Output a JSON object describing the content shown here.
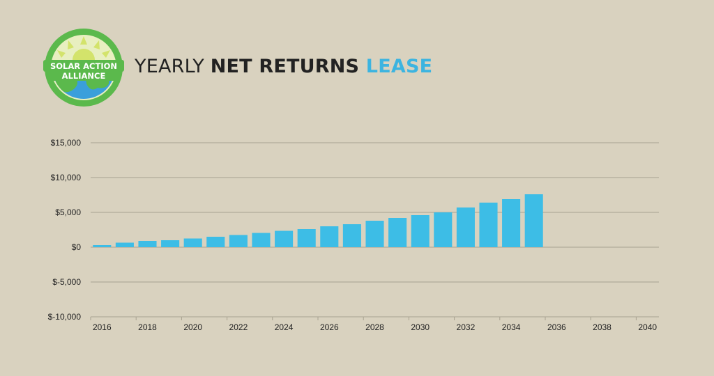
{
  "brand": {
    "logo_line1": "SOLAR ACTION",
    "logo_line2": "ALLIANCE",
    "colors": {
      "ring": "#5bb94c",
      "sun": "#d3e36b",
      "earth": "#3a9fdb",
      "land": "#5bb94c"
    }
  },
  "title": {
    "part1": "YEARLY ",
    "part2": "NET RETURNS ",
    "part3": "LEASE",
    "accent_color": "#3cb4e0"
  },
  "chart_data": {
    "type": "bar",
    "title": "YEARLY NET RETURNS LEASE",
    "xlabel": "",
    "ylabel": "",
    "ylim": [
      -10000,
      15000
    ],
    "yticks": [
      15000,
      10000,
      5000,
      0,
      -5000,
      -10000
    ],
    "ytick_labels": [
      "$15,000",
      "$10,000",
      "$5,000",
      "$0",
      "$-5,000",
      "$-10,000"
    ],
    "xlim": [
      2016,
      2041
    ],
    "xtick_labels": [
      "2016",
      "2018",
      "2020",
      "2022",
      "2024",
      "2026",
      "2028",
      "2030",
      "2032",
      "2034",
      "2036",
      "2038",
      "2040"
    ],
    "years": [
      2016,
      2017,
      2018,
      2019,
      2020,
      2021,
      2022,
      2023,
      2024,
      2025,
      2026,
      2027,
      2028,
      2029,
      2030,
      2031,
      2032,
      2033,
      2034,
      2035
    ],
    "values": [
      300,
      650,
      900,
      1000,
      1250,
      1500,
      1750,
      2050,
      2350,
      2600,
      3000,
      3300,
      3800,
      4200,
      4600,
      5000,
      5700,
      6400,
      6900,
      7600
    ],
    "grid": true,
    "bar_color": "#3dbde6",
    "grid_color": "#a8a190"
  }
}
